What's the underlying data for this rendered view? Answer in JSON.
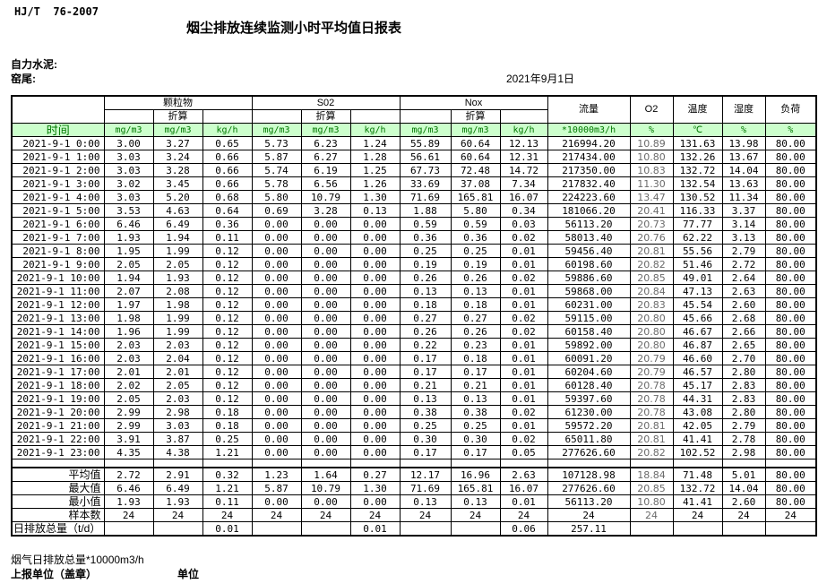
{
  "meta": {
    "standard": "HJ/T  76-2007",
    "title": "烟尘排放连续监测小时平均值日报表",
    "company": "自力水泥:",
    "location": "窑尾:",
    "date": "2021年9月1日"
  },
  "table": {
    "time_header": "时间",
    "converted_label": "折算",
    "groups": [
      "颗粒物",
      "S02",
      "Nox"
    ],
    "flow_header": "流量",
    "o2_header": "O2",
    "temp_header": "温度",
    "humidity_header": "湿度",
    "load_header": "负荷",
    "units": [
      "mg/m3",
      "mg/m3",
      "kg/h",
      "mg/m3",
      "mg/m3",
      "kg/h",
      "mg/m3",
      "mg/m3",
      "kg/h",
      "*10000m3/h",
      "%",
      "℃",
      "%",
      "%"
    ],
    "rows": [
      {
        "time": "2021-9-1 0:00",
        "values": [
          "3.00",
          "3.27",
          "0.65",
          "5.73",
          "6.23",
          "1.24",
          "55.89",
          "60.64",
          "12.13",
          "216994.20",
          "10.89",
          "131.63",
          "13.98",
          "80.00"
        ]
      },
      {
        "time": "2021-9-1 1:00",
        "values": [
          "3.03",
          "3.24",
          "0.66",
          "5.87",
          "6.27",
          "1.28",
          "56.61",
          "60.64",
          "12.31",
          "217434.00",
          "10.80",
          "132.26",
          "13.67",
          "80.00"
        ]
      },
      {
        "time": "2021-9-1 2:00",
        "values": [
          "3.03",
          "3.28",
          "0.66",
          "5.74",
          "6.19",
          "1.25",
          "67.73",
          "72.48",
          "14.72",
          "217350.00",
          "10.83",
          "132.72",
          "14.04",
          "80.00"
        ]
      },
      {
        "time": "2021-9-1 3:00",
        "values": [
          "3.02",
          "3.45",
          "0.66",
          "5.78",
          "6.56",
          "1.26",
          "33.69",
          "37.08",
          "7.34",
          "217832.40",
          "11.30",
          "132.54",
          "13.63",
          "80.00"
        ]
      },
      {
        "time": "2021-9-1 4:00",
        "values": [
          "3.03",
          "5.20",
          "0.68",
          "5.80",
          "10.79",
          "1.30",
          "71.69",
          "165.81",
          "16.07",
          "224223.60",
          "13.47",
          "130.52",
          "11.34",
          "80.00"
        ]
      },
      {
        "time": "2021-9-1 5:00",
        "values": [
          "3.53",
          "4.63",
          "0.64",
          "0.69",
          "3.28",
          "0.13",
          "1.88",
          "5.80",
          "0.34",
          "181066.20",
          "20.41",
          "116.33",
          "3.37",
          "80.00"
        ]
      },
      {
        "time": "2021-9-1 6:00",
        "values": [
          "6.46",
          "6.49",
          "0.36",
          "0.00",
          "0.00",
          "0.00",
          "0.59",
          "0.59",
          "0.03",
          "56113.20",
          "20.73",
          "77.77",
          "3.14",
          "80.00"
        ]
      },
      {
        "time": "2021-9-1 7:00",
        "values": [
          "1.93",
          "1.94",
          "0.11",
          "0.00",
          "0.00",
          "0.00",
          "0.36",
          "0.36",
          "0.02",
          "58013.40",
          "20.76",
          "62.22",
          "3.13",
          "80.00"
        ]
      },
      {
        "time": "2021-9-1 8:00",
        "values": [
          "1.95",
          "1.99",
          "0.12",
          "0.00",
          "0.00",
          "0.00",
          "0.25",
          "0.25",
          "0.01",
          "59456.40",
          "20.81",
          "55.56",
          "2.79",
          "80.00"
        ]
      },
      {
        "time": "2021-9-1 9:00",
        "values": [
          "2.05",
          "2.05",
          "0.12",
          "0.00",
          "0.00",
          "0.00",
          "0.19",
          "0.19",
          "0.01",
          "60198.60",
          "20.82",
          "51.46",
          "2.72",
          "80.00"
        ]
      },
      {
        "time": "2021-9-1 10:00",
        "values": [
          "1.94",
          "1.93",
          "0.12",
          "0.00",
          "0.00",
          "0.00",
          "0.26",
          "0.26",
          "0.02",
          "59886.60",
          "20.85",
          "49.01",
          "2.64",
          "80.00"
        ]
      },
      {
        "time": "2021-9-1 11:00",
        "values": [
          "2.07",
          "2.08",
          "0.12",
          "0.00",
          "0.00",
          "0.00",
          "0.13",
          "0.13",
          "0.01",
          "59868.00",
          "20.84",
          "47.13",
          "2.63",
          "80.00"
        ]
      },
      {
        "time": "2021-9-1 12:00",
        "values": [
          "1.97",
          "1.98",
          "0.12",
          "0.00",
          "0.00",
          "0.00",
          "0.18",
          "0.18",
          "0.01",
          "60231.00",
          "20.83",
          "45.54",
          "2.60",
          "80.00"
        ]
      },
      {
        "time": "2021-9-1 13:00",
        "values": [
          "1.98",
          "1.99",
          "0.12",
          "0.00",
          "0.00",
          "0.00",
          "0.27",
          "0.27",
          "0.02",
          "59115.00",
          "20.80",
          "45.66",
          "2.68",
          "80.00"
        ]
      },
      {
        "time": "2021-9-1 14:00",
        "values": [
          "1.96",
          "1.99",
          "0.12",
          "0.00",
          "0.00",
          "0.00",
          "0.26",
          "0.26",
          "0.02",
          "60158.40",
          "20.80",
          "46.67",
          "2.66",
          "80.00"
        ]
      },
      {
        "time": "2021-9-1 15:00",
        "values": [
          "2.03",
          "2.03",
          "0.12",
          "0.00",
          "0.00",
          "0.00",
          "0.22",
          "0.23",
          "0.01",
          "59892.00",
          "20.80",
          "46.87",
          "2.65",
          "80.00"
        ]
      },
      {
        "time": "2021-9-1 16:00",
        "values": [
          "2.03",
          "2.04",
          "0.12",
          "0.00",
          "0.00",
          "0.00",
          "0.17",
          "0.18",
          "0.01",
          "60091.20",
          "20.79",
          "46.60",
          "2.70",
          "80.00"
        ]
      },
      {
        "time": "2021-9-1 17:00",
        "values": [
          "2.01",
          "2.01",
          "0.12",
          "0.00",
          "0.00",
          "0.00",
          "0.17",
          "0.17",
          "0.01",
          "60204.60",
          "20.79",
          "46.57",
          "2.80",
          "80.00"
        ]
      },
      {
        "time": "2021-9-1 18:00",
        "values": [
          "2.02",
          "2.05",
          "0.12",
          "0.00",
          "0.00",
          "0.00",
          "0.21",
          "0.21",
          "0.01",
          "60128.40",
          "20.78",
          "45.17",
          "2.83",
          "80.00"
        ]
      },
      {
        "time": "2021-9-1 19:00",
        "values": [
          "2.05",
          "2.03",
          "0.12",
          "0.00",
          "0.00",
          "0.00",
          "0.13",
          "0.13",
          "0.01",
          "59397.60",
          "20.78",
          "44.31",
          "2.83",
          "80.00"
        ]
      },
      {
        "time": "2021-9-1 20:00",
        "values": [
          "2.99",
          "2.98",
          "0.18",
          "0.00",
          "0.00",
          "0.00",
          "0.38",
          "0.38",
          "0.02",
          "61230.00",
          "20.78",
          "43.08",
          "2.80",
          "80.00"
        ]
      },
      {
        "time": "2021-9-1 21:00",
        "values": [
          "2.99",
          "3.03",
          "0.18",
          "0.00",
          "0.00",
          "0.00",
          "0.25",
          "0.25",
          "0.01",
          "59572.20",
          "20.81",
          "42.05",
          "2.79",
          "80.00"
        ]
      },
      {
        "time": "2021-9-1 22:00",
        "values": [
          "3.91",
          "3.87",
          "0.25",
          "0.00",
          "0.00",
          "0.00",
          "0.30",
          "0.30",
          "0.02",
          "65011.80",
          "20.81",
          "41.41",
          "2.78",
          "80.00"
        ]
      },
      {
        "time": "2021-9-1 23:00",
        "values": [
          "4.35",
          "4.38",
          "1.21",
          "0.00",
          "0.00",
          "0.00",
          "0.17",
          "0.17",
          "0.05",
          "277626.60",
          "20.82",
          "102.52",
          "2.98",
          "80.00"
        ]
      }
    ],
    "summary": [
      {
        "label": "平均值",
        "values": [
          "2.72",
          "2.91",
          "0.32",
          "1.23",
          "1.64",
          "0.27",
          "12.17",
          "16.96",
          "2.63",
          "107128.98",
          "18.84",
          "71.48",
          "5.01",
          "80.00"
        ]
      },
      {
        "label": "最大值",
        "values": [
          "6.46",
          "6.49",
          "1.21",
          "5.87",
          "10.79",
          "1.30",
          "71.69",
          "165.81",
          "16.07",
          "277626.60",
          "20.85",
          "132.72",
          "14.04",
          "80.00"
        ]
      },
      {
        "label": "最小值",
        "values": [
          "1.93",
          "1.93",
          "0.11",
          "0.00",
          "0.00",
          "0.00",
          "0.13",
          "0.13",
          "0.01",
          "56113.20",
          "10.80",
          "41.41",
          "2.60",
          "80.00"
        ]
      },
      {
        "label": "样本数",
        "values": [
          "24",
          "24",
          "24",
          "24",
          "24",
          "24",
          "24",
          "24",
          "24",
          "24",
          "24",
          "24",
          "24",
          "24"
        ]
      },
      {
        "label": "日排放总量（t/d）",
        "values": [
          "",
          "",
          "0.01",
          "",
          "",
          "0.01",
          "",
          "",
          "0.06",
          "257.11",
          "",
          "",
          "",
          ""
        ]
      }
    ]
  },
  "footer": {
    "flow_note": "烟气日排放总量*10000m3/h",
    "report_unit_label": "上报单位（盖章）",
    "unit_label": "单位"
  }
}
